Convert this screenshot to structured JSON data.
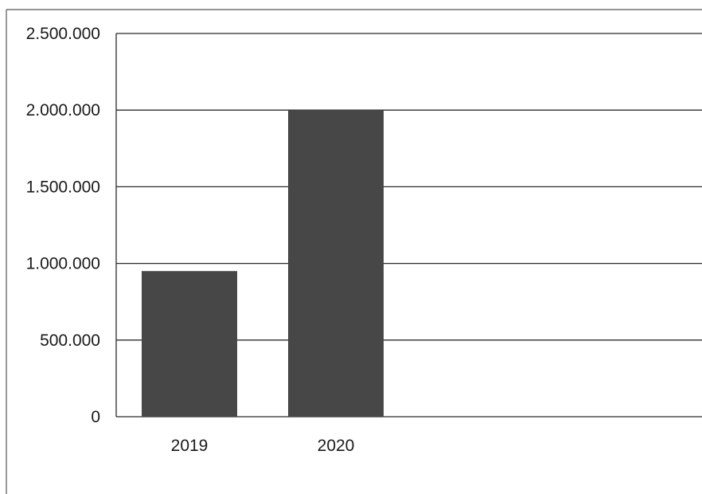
{
  "chart_data": {
    "type": "bar",
    "categories": [
      "2019",
      "2020"
    ],
    "values": [
      950000,
      2000000
    ],
    "ylim": [
      0,
      2500000
    ],
    "yticks": [
      0,
      500000,
      1000000,
      1500000,
      2000000,
      2500000
    ],
    "ytick_labels": [
      "0",
      "500.000",
      "1.000.000",
      "1.500.000",
      "2.000.000",
      "2.500.000"
    ],
    "title": "",
    "xlabel": "",
    "ylabel": "",
    "grid": true,
    "legend": "none",
    "colors": {
      "bar": "#474747",
      "grid": "#2b2b2b",
      "text": "#1a1a1a",
      "background": "#ffffff"
    }
  }
}
